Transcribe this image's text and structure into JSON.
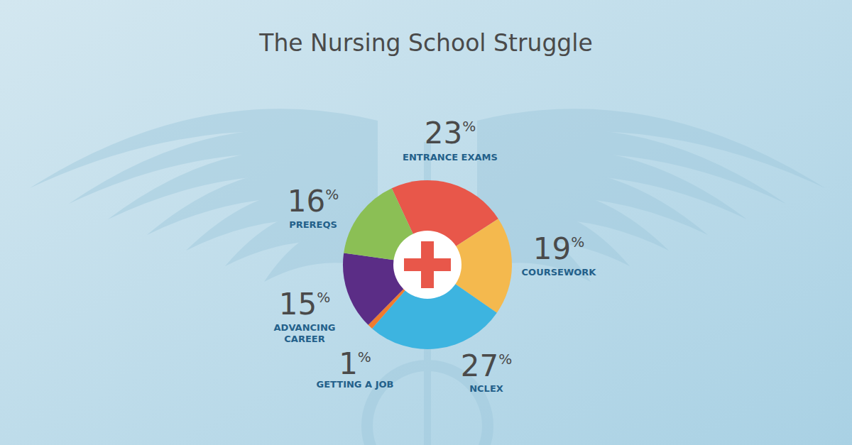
{
  "chart_data": {
    "type": "pie",
    "title": "The Nursing School Struggle",
    "categories": [
      "ENTRANCE EXAMS",
      "COURSEWORK",
      "NCLEX",
      "GETTING A JOB",
      "ADVANCING CAREER",
      "PREREQS"
    ],
    "values": [
      23,
      19,
      27,
      1,
      15,
      16
    ],
    "value_labels": [
      "23%",
      "19%",
      "27%",
      "1%",
      "15%",
      "16%"
    ],
    "colors": [
      "#e8574a",
      "#f4b94e",
      "#3db4e0",
      "#f07b2e",
      "#5b2d86",
      "#8bbf55"
    ],
    "data_labels": true
  }
}
